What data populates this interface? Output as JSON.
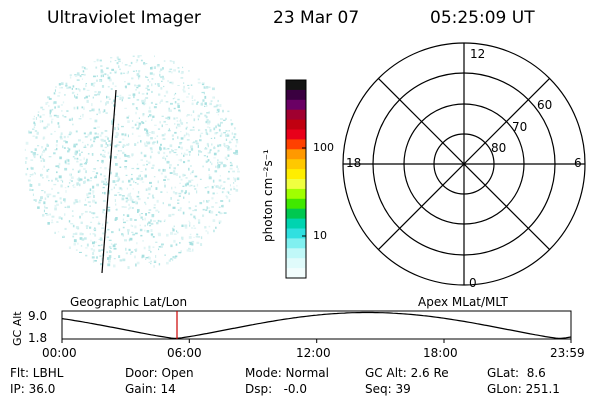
{
  "header": {
    "instrument": "Ultraviolet Imager",
    "date": "23 Mar 07",
    "time": "05:25:09 UT"
  },
  "colorbar": {
    "unit_label": "photon cm⁻²s⁻¹",
    "ticks": [
      "100",
      "10"
    ],
    "colors": [
      "#141414",
      "#3a0040",
      "#6a0064",
      "#a00030",
      "#c00010",
      "#e8001a",
      "#ff4000",
      "#ff9900",
      "#ffc800",
      "#ffee00",
      "#f0ff40",
      "#a0ff00",
      "#40e800",
      "#00c850",
      "#00d4b0",
      "#30e0e0",
      "#80f0f0",
      "#c0f8f8",
      "#e0fbfb",
      "#f2fdfd"
    ]
  },
  "polar_grid": {
    "labels": {
      "top": "12",
      "bottom": "0",
      "left": "18",
      "right": "6",
      "lat60": "60",
      "lat70": "70",
      "lat80": "80"
    }
  },
  "timeline": {
    "left_title": "Geographic Lat/Lon",
    "right_title": "Apex MLat/MLT",
    "axis_title": "GC Alt",
    "y_ticks": [
      "9.0",
      "1.8"
    ],
    "x_ticks": [
      "00:00",
      "06:00",
      "12:00",
      "18:00",
      "23:59"
    ],
    "marker_color": "#cc0000",
    "marker_time_hours": 5.419
  },
  "status": {
    "filter": "Flt: LBHL",
    "door": "Door: Open",
    "mode": "Mode: Normal",
    "gc_alt": "GC Alt: 2.6 Re",
    "glat": "GLat:  8.6",
    "ip": "IP: 36.0",
    "gain": "Gain: 14",
    "dsp": "Dsp:   -0.0",
    "seq": "Seq: 39",
    "glon": "GLon: 251.1"
  }
}
